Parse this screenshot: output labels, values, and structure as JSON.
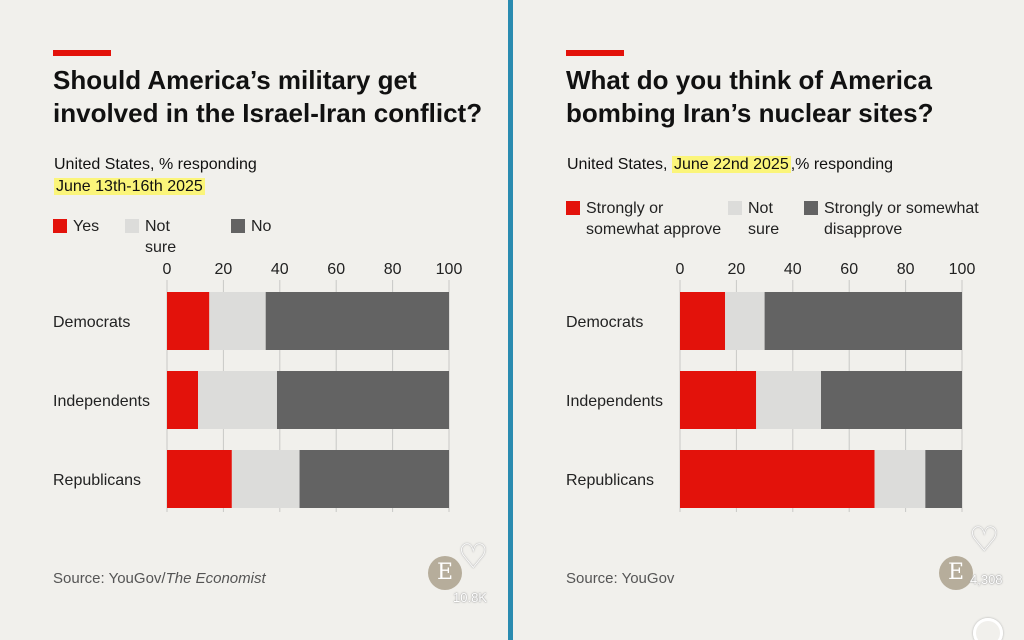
{
  "panels": [
    {
      "title": "Should America’s military get involved in the Israel-Iran conflict?",
      "subtitle_prefix": "United States, % responding",
      "subtitle_highlight": "June 13th-16th 2025",
      "subtitle_suffix": "",
      "legend": [
        "Yes",
        "Not sure",
        "No"
      ],
      "source_prefix": "Source: YouGov/",
      "source_italic": "The Economist",
      "likes": "10.8K"
    },
    {
      "title": "What do you think of America bombing Iran’s nuclear sites?",
      "subtitle_prefix": "United States, ",
      "subtitle_highlight": "June 22nd 2025",
      "subtitle_suffix": ",% responding",
      "legend": [
        "Strongly or somewhat approve",
        "Not sure",
        "Strongly or somewhat disapprove"
      ],
      "source_prefix": "Source: YouGov",
      "source_italic": "",
      "likes": "4,308"
    }
  ],
  "badge_letter": "E",
  "colors": {
    "positive": "#e3120b",
    "neutral": "#dcdcda",
    "negative": "#636363",
    "highlight": "#fbf57a",
    "accent": "#e3120b"
  },
  "icons": [
    "heart-icon",
    "economist-badge-icon"
  ],
  "chart_data": [
    {
      "type": "bar",
      "orientation": "horizontal",
      "stacked": true,
      "categories": [
        "Democrats",
        "Independents",
        "Republicans"
      ],
      "series": [
        {
          "name": "Yes",
          "values": [
            15,
            11,
            23
          ]
        },
        {
          "name": "Not sure",
          "values": [
            20,
            28,
            24
          ]
        },
        {
          "name": "No",
          "values": [
            65,
            61,
            53
          ]
        }
      ],
      "xticks": [
        0,
        20,
        40,
        60,
        80,
        100
      ],
      "xlim": [
        0,
        100
      ],
      "grid": true,
      "legend_position": "top"
    },
    {
      "type": "bar",
      "orientation": "horizontal",
      "stacked": true,
      "categories": [
        "Democrats",
        "Independents",
        "Republicans"
      ],
      "series": [
        {
          "name": "Strongly or somewhat approve",
          "values": [
            16,
            27,
            69
          ]
        },
        {
          "name": "Not sure",
          "values": [
            14,
            23,
            18
          ]
        },
        {
          "name": "Strongly or somewhat disapprove",
          "values": [
            70,
            50,
            13
          ]
        }
      ],
      "xticks": [
        0,
        20,
        40,
        60,
        80,
        100
      ],
      "xlim": [
        0,
        100
      ],
      "grid": true,
      "legend_position": "top"
    }
  ]
}
